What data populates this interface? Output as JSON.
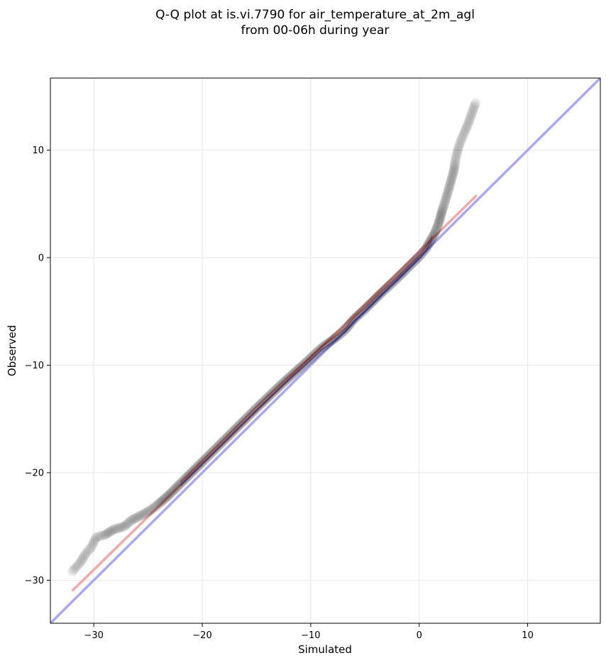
{
  "chart_data": {
    "type": "scatter",
    "title": "Q-Q plot at is.vi.7790 for air_temperature_at_2m_agl",
    "subtitle": "from 00-06h during year",
    "xlabel": "Simulated",
    "ylabel": "Observed",
    "xlim": [
      -34,
      16.7
    ],
    "ylim": [
      -34,
      16.7
    ],
    "xticks": [
      -30,
      -20,
      -10,
      0,
      10
    ],
    "yticks": [
      -30,
      -20,
      -10,
      0,
      10
    ],
    "xtick_labels": [
      "−30",
      "−20",
      "−10",
      "0",
      "10"
    ],
    "ytick_labels": [
      "−30",
      "−20",
      "−10",
      "0",
      "10"
    ],
    "grid": true,
    "colors": {
      "points": "#000000",
      "identity_line": "#a8a8f5",
      "fit_line": "#f5a8a8",
      "fit_overlay": "#8b1a1a",
      "identity_overlay": "#1a1a8b"
    },
    "identity_line": {
      "x": [
        -34,
        16.7
      ],
      "y": [
        -34,
        16.7
      ]
    },
    "fit_line": {
      "x": [
        -32,
        5.3
      ],
      "y": [
        -31,
        5.8
      ]
    },
    "quantile_curve": {
      "x": [
        -32,
        -31.2,
        -30.8,
        -30.2,
        -29.8,
        -29,
        -28.2,
        -27.2,
        -26.5,
        -25.5,
        -24.5,
        -23.2,
        -22,
        -20,
        -17.5,
        -15,
        -12.5,
        -10.5,
        -9,
        -7.5,
        -6.8,
        -6,
        -5,
        -3.5,
        -2,
        -1,
        0,
        0.6,
        1,
        1.4,
        1.8,
        2.1,
        2.5,
        2.9,
        3.2,
        3.4,
        3.7,
        4.1,
        4.5,
        5.2
      ],
      "y": [
        -29.2,
        -28.3,
        -27.6,
        -26.9,
        -26,
        -25.8,
        -25.3,
        -25,
        -24.4,
        -23.9,
        -23.3,
        -22.2,
        -21,
        -19,
        -16.5,
        -14,
        -11.6,
        -9.8,
        -8.4,
        -7.3,
        -6.7,
        -5.7,
        -4.8,
        -3.3,
        -1.9,
        -0.9,
        0.1,
        0.8,
        1.5,
        2.2,
        3.2,
        4.3,
        5.6,
        7,
        8.1,
        9.4,
        10.5,
        11.5,
        12.4,
        14.4
      ]
    }
  }
}
